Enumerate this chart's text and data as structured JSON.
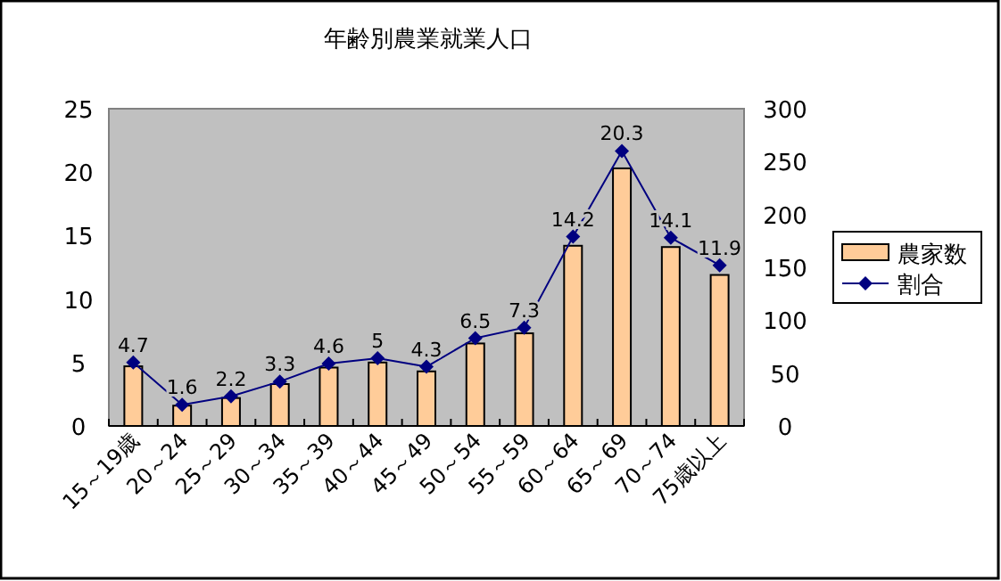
{
  "chart_data": {
    "type": "bar",
    "title": "年齢別農業就業人口",
    "categories": [
      "15～19歳",
      "20～24",
      "25～29",
      "30～34",
      "35～39",
      "40～44",
      "45～49",
      "50～54",
      "55～59",
      "60～64",
      "65～69",
      "70～74",
      "75歳以上"
    ],
    "series": [
      {
        "name": "農家数",
        "color": "#ffcc99",
        "values": [
          4.7,
          1.6,
          2.2,
          3.3,
          4.6,
          5,
          4.3,
          6.5,
          7.3,
          14.2,
          20.3,
          14.1,
          11.9
        ],
        "value_labels": [
          "4.7",
          "1.6",
          "2.2",
          "3.3",
          "4.6",
          "5",
          "4.3",
          "6.5",
          "7.3",
          "14.2",
          "20.3",
          "14.1",
          "11.9"
        ]
      },
      {
        "name": "割合",
        "type": "line",
        "axis": "y2",
        "color": "#000080",
        "marker": "diamond",
        "values": [
          60,
          20,
          28,
          42,
          59,
          64,
          56,
          83,
          93,
          179,
          260,
          178,
          152
        ]
      }
    ],
    "ylim": [
      0,
      25
    ],
    "yticks": [
      0,
      5,
      10,
      15,
      20,
      25
    ],
    "y2lim": [
      0,
      300
    ],
    "y2ticks": [
      0,
      50,
      100,
      150,
      200,
      250,
      300
    ],
    "legend": "right",
    "grid": false
  }
}
